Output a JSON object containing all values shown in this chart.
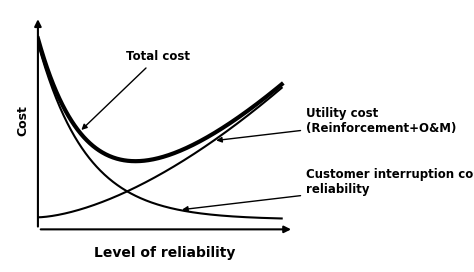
{
  "xlabel": "Level of reliability",
  "ylabel": "Cost",
  "bg_color": "#ffffff",
  "total_cost_color": "#000000",
  "utility_cost_color": "#000000",
  "customer_cost_color": "#000000",
  "annotation_total_cost": "Total cost",
  "annotation_utility_cost": "Utility cost\n(Reinforcement+O&M)",
  "annotation_customer_cost": "Customer interruption cost due to\nreliability",
  "xlabel_fontsize": 10,
  "ylabel_fontsize": 9,
  "annotation_fontsize": 8.5,
  "total_cost_linewidth": 3.0,
  "other_linewidth": 1.5
}
